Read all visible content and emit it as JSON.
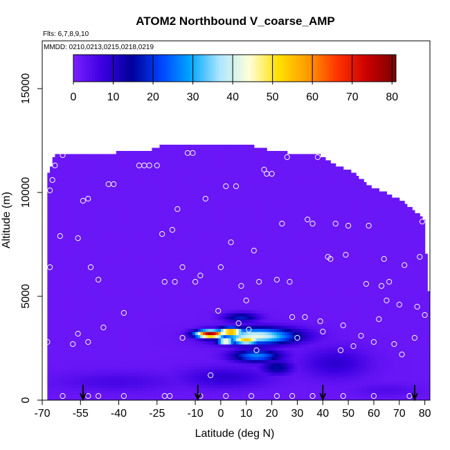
{
  "chart_data": {
    "type": "heatmap",
    "title": "ATOM2 Northbound V_coarse_AMP",
    "flights_label": "Flts: 6,7,8,9,10",
    "dates_label": "MMDD: 0210,0213,0215,0218,0219",
    "xlabel": "Latitude (deg N)",
    "ylabel": "Altitude (m)",
    "xlim": [
      -70,
      82
    ],
    "ylim": [
      0,
      17300
    ],
    "x_ticks": [
      -70,
      -55,
      -40,
      -25,
      -10,
      0,
      10,
      20,
      30,
      40,
      50,
      60,
      70,
      80
    ],
    "x_tick_labels": [
      "-70",
      "-55",
      "-40",
      "-25",
      "-10",
      "0",
      "10",
      "20",
      "30",
      "40",
      "50",
      "60",
      "70",
      "80"
    ],
    "y_ticks": [
      0,
      5000,
      10000,
      15000
    ],
    "y_tick_labels": [
      "0",
      "5000",
      "10000",
      "15000"
    ],
    "colorbar": {
      "range": [
        0,
        81
      ],
      "ticks": [
        0,
        10,
        20,
        30,
        40,
        50,
        60,
        70,
        80
      ],
      "tick_labels": [
        "0",
        "10",
        "20",
        "30",
        "40",
        "50",
        "60",
        "70",
        "80"
      ],
      "colors": [
        "#7b1fff",
        "#3b00e0",
        "#00009a",
        "#0044ff",
        "#00a8ff",
        "#aee6ff",
        "#ffffd8",
        "#ffe000",
        "#ff9a00",
        "#ff3300",
        "#cc0000",
        "#7a0000"
      ]
    },
    "background_value": 2,
    "envelope": [
      [
        -68,
        10800
      ],
      [
        -65,
        11800
      ],
      [
        -60,
        11900
      ],
      [
        -45,
        11900
      ],
      [
        -28,
        12000
      ],
      [
        -23,
        12300
      ],
      [
        -12,
        12300
      ],
      [
        0,
        12300
      ],
      [
        10,
        12300
      ],
      [
        17,
        12100
      ],
      [
        27,
        11900
      ],
      [
        38,
        11900
      ],
      [
        44,
        11400
      ],
      [
        52,
        11000
      ],
      [
        58,
        10300
      ],
      [
        65,
        10000
      ],
      [
        72,
        9500
      ],
      [
        77,
        9000
      ],
      [
        80,
        8600
      ],
      [
        80,
        7800
      ],
      [
        81,
        6400
      ],
      [
        82,
        4200
      ],
      [
        82,
        0
      ],
      [
        -68,
        0
      ]
    ],
    "hotspots": [
      {
        "lat": 14,
        "alt": 3100,
        "lat_width": 36,
        "alt_width": 900,
        "value": 42
      },
      {
        "lat": -4,
        "alt": 3200,
        "lat_width": 14,
        "alt_width": 450,
        "value": 78
      },
      {
        "lat": 4,
        "alt": 3300,
        "lat_width": 12,
        "alt_width": 500,
        "value": 62
      },
      {
        "lat": 10,
        "alt": 2900,
        "lat_width": 14,
        "alt_width": 450,
        "value": 55
      },
      {
        "lat": 2,
        "alt": 2850,
        "lat_width": 8,
        "alt_width": 300,
        "value": 60
      },
      {
        "lat": 14,
        "alt": 2150,
        "lat_width": 22,
        "alt_width": 700,
        "value": 27
      },
      {
        "lat": 22,
        "alt": 1600,
        "lat_width": 14,
        "alt_width": 800,
        "value": 16
      },
      {
        "lat": 8,
        "alt": 4000,
        "lat_width": 16,
        "alt_width": 500,
        "value": 18
      },
      {
        "lat": 2,
        "alt": 1100,
        "lat_width": 40,
        "alt_width": 1200,
        "value": 9
      },
      {
        "lat": 45,
        "alt": 1800,
        "lat_width": 30,
        "alt_width": 1700,
        "value": 9
      },
      {
        "lat": -40,
        "alt": 900,
        "lat_width": 56,
        "alt_width": 1100,
        "value": 6
      },
      {
        "lat": 65,
        "alt": 500,
        "lat_width": 30,
        "alt_width": 700,
        "value": 5
      }
    ],
    "obs_points": [
      [
        -66,
        10600
      ],
      [
        -67,
        10100
      ],
      [
        -65,
        11300
      ],
      [
        -62,
        11800
      ],
      [
        -63,
        7900
      ],
      [
        -56,
        7800
      ],
      [
        -54,
        9600
      ],
      [
        -52,
        9700
      ],
      [
        -51,
        6400
      ],
      [
        -58,
        2700
      ],
      [
        -56,
        3200
      ],
      [
        -52,
        2800
      ],
      [
        -48,
        5800
      ],
      [
        -46,
        3500
      ],
      [
        -44,
        10400
      ],
      [
        -42,
        10400
      ],
      [
        -38,
        4200
      ],
      [
        -32,
        11300
      ],
      [
        -30,
        11300
      ],
      [
        -28,
        11300
      ],
      [
        -25,
        11300
      ],
      [
        -23,
        8000
      ],
      [
        -22,
        5700
      ],
      [
        -19,
        8200
      ],
      [
        -18,
        5700
      ],
      [
        -17,
        9200
      ],
      [
        -15,
        6400
      ],
      [
        -15,
        3000
      ],
      [
        -13,
        11900
      ],
      [
        -11,
        11900
      ],
      [
        -10,
        5700
      ],
      [
        -8,
        6000
      ],
      [
        -6,
        9700
      ],
      [
        -4,
        1200
      ],
      [
        -1,
        4300
      ],
      [
        0,
        6400
      ],
      [
        2,
        10300
      ],
      [
        4,
        7600
      ],
      [
        6,
        10300
      ],
      [
        7,
        3700
      ],
      [
        8,
        5500
      ],
      [
        10,
        4800
      ],
      [
        11,
        3400
      ],
      [
        13,
        7200
      ],
      [
        14,
        2400
      ],
      [
        15,
        5700
      ],
      [
        17,
        11100
      ],
      [
        18,
        10900
      ],
      [
        20,
        10900
      ],
      [
        22,
        5800
      ],
      [
        24,
        8500
      ],
      [
        26,
        11700
      ],
      [
        27,
        5700
      ],
      [
        28,
        4000
      ],
      [
        30,
        3000
      ],
      [
        33,
        4000
      ],
      [
        34,
        8700
      ],
      [
        36,
        8500
      ],
      [
        38,
        11700
      ],
      [
        39,
        3800
      ],
      [
        40,
        3300
      ],
      [
        42,
        6900
      ],
      [
        43,
        6800
      ],
      [
        45,
        8500
      ],
      [
        47,
        2400
      ],
      [
        48,
        3600
      ],
      [
        49,
        7000
      ],
      [
        50,
        8400
      ],
      [
        52,
        2600
      ],
      [
        55,
        3100
      ],
      [
        57,
        5600
      ],
      [
        58,
        8400
      ],
      [
        60,
        2800
      ],
      [
        62,
        3900
      ],
      [
        63,
        5500
      ],
      [
        64,
        6800
      ],
      [
        65,
        4800
      ],
      [
        66,
        5700
      ],
      [
        68,
        2700
      ],
      [
        70,
        4600
      ],
      [
        71,
        2200
      ],
      [
        72,
        6500
      ],
      [
        74,
        11400
      ],
      [
        76,
        3000
      ],
      [
        77,
        4500
      ],
      [
        78,
        6900
      ],
      [
        79,
        8600
      ],
      [
        80,
        4100
      ],
      [
        81,
        9100
      ],
      [
        -68,
        2800
      ],
      [
        -67,
        6400
      ],
      [
        -52,
        200
      ],
      [
        -48,
        200
      ],
      [
        -38,
        200
      ],
      [
        -20,
        200
      ],
      [
        -8,
        200
      ],
      [
        2,
        200
      ],
      [
        12,
        200
      ],
      [
        22,
        200
      ],
      [
        36,
        200
      ],
      [
        48,
        200
      ],
      [
        60,
        200
      ],
      [
        74,
        200
      ],
      [
        -62,
        200
      ],
      [
        -22,
        200
      ],
      [
        28,
        200
      ]
    ],
    "arrows_lat": [
      -54,
      -9,
      40,
      76
    ],
    "grid": false,
    "legend": "colorbar-top"
  }
}
